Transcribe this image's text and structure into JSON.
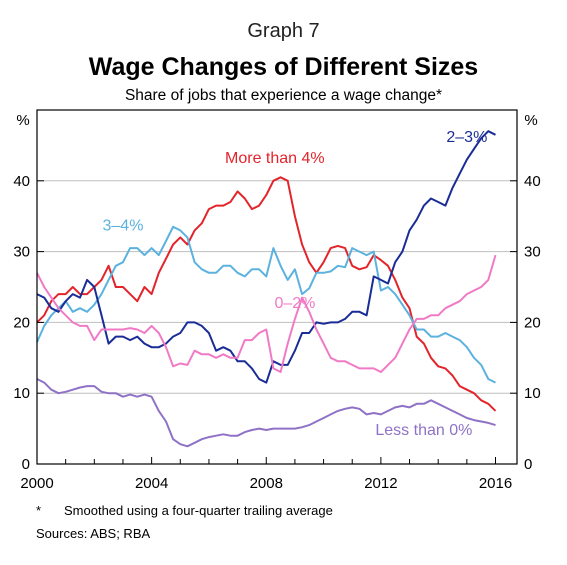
{
  "header": {
    "graph_label": "Graph 7",
    "title": "Wage Changes of Different Sizes",
    "subtitle": "Share of jobs that experience a wage change*"
  },
  "footer": {
    "footnote_marker": "*",
    "footnote": "Smoothed using a four-quarter trailing average",
    "sources": "Sources:   ABS; RBA"
  },
  "chart_data": {
    "type": "line",
    "title": "Wage Changes of Different Sizes",
    "subtitle": "Share of jobs that experience a wage change*",
    "ylabel_left": "%",
    "ylabel_right": "%",
    "ylim": [
      0,
      50
    ],
    "xlim": [
      2000,
      2016.75
    ],
    "yticks": [
      0,
      10,
      20,
      30,
      40
    ],
    "xticks": [
      2000,
      2004,
      2008,
      2012,
      2016
    ],
    "xtick_labels": [
      "2000",
      "2004",
      "2008",
      "2012",
      "2016"
    ],
    "grid": true,
    "x": [
      2000.0,
      2000.25,
      2000.5,
      2000.75,
      2001.0,
      2001.25,
      2001.5,
      2001.75,
      2002.0,
      2002.25,
      2002.5,
      2002.75,
      2003.0,
      2003.25,
      2003.5,
      2003.75,
      2004.0,
      2004.25,
      2004.5,
      2004.75,
      2005.0,
      2005.25,
      2005.5,
      2005.75,
      2006.0,
      2006.25,
      2006.5,
      2006.75,
      2007.0,
      2007.25,
      2007.5,
      2007.75,
      2008.0,
      2008.25,
      2008.5,
      2008.75,
      2009.0,
      2009.25,
      2009.5,
      2009.75,
      2010.0,
      2010.25,
      2010.5,
      2010.75,
      2011.0,
      2011.25,
      2011.5,
      2011.75,
      2012.0,
      2012.25,
      2012.5,
      2012.75,
      2013.0,
      2013.25,
      2013.5,
      2013.75,
      2014.0,
      2014.25,
      2014.5,
      2014.75,
      2015.0,
      2015.25,
      2015.5,
      2015.75,
      2016.0
    ],
    "series": [
      {
        "name": "More than 4%",
        "color": "#e3242b",
        "label_x": 2008.3,
        "label_y": 42.5,
        "values": [
          20.0,
          21.0,
          23.0,
          24.0,
          24.0,
          25.0,
          24.0,
          24.0,
          25.0,
          26.0,
          28.0,
          25.0,
          25.0,
          24.0,
          23.0,
          25.0,
          24.0,
          27.0,
          29.0,
          31.0,
          32.0,
          31.0,
          33.0,
          34.0,
          36.0,
          36.5,
          36.5,
          37.0,
          38.5,
          37.5,
          36.0,
          36.5,
          38.0,
          40.0,
          40.5,
          40.0,
          35.0,
          31.0,
          28.5,
          27.0,
          28.5,
          30.5,
          30.8,
          30.5,
          28.0,
          27.5,
          27.8,
          29.5,
          28.8,
          28.0,
          26.0,
          23.5,
          22.0,
          18.0,
          17.0,
          15.0,
          13.8,
          13.5,
          12.5,
          11.0,
          10.5,
          10.0,
          9.0,
          8.5,
          7.5
        ]
      },
      {
        "name": "3–4%",
        "color": "#5bb2de",
        "label_x": 2003.0,
        "label_y": 33.0,
        "values": [
          17.2,
          19.5,
          21.0,
          22.0,
          23.0,
          21.5,
          22.0,
          21.5,
          22.5,
          24.0,
          26.0,
          28.0,
          28.5,
          30.5,
          30.5,
          29.5,
          30.5,
          29.5,
          31.5,
          33.5,
          33.0,
          32.0,
          28.5,
          27.5,
          27.0,
          27.0,
          28.0,
          28.0,
          27.0,
          26.5,
          27.5,
          27.5,
          26.5,
          30.5,
          28.0,
          26.0,
          27.5,
          24.0,
          24.8,
          27.0,
          27.0,
          27.2,
          28.0,
          27.8,
          30.5,
          30.0,
          29.5,
          30.0,
          24.5,
          25.0,
          24.0,
          22.5,
          21.0,
          19.0,
          19.0,
          18.0,
          18.0,
          18.5,
          18.0,
          17.5,
          16.5,
          15.0,
          14.0,
          12.0,
          11.5
        ]
      },
      {
        "name": "2–3%",
        "color": "#1a2d96",
        "label_x": 2015.0,
        "label_y": 45.5,
        "values": [
          24.0,
          23.5,
          22.0,
          21.5,
          23.0,
          24.0,
          23.5,
          26.0,
          25.0,
          21.0,
          17.0,
          18.0,
          18.0,
          17.5,
          18.0,
          17.0,
          16.5,
          16.5,
          17.0,
          18.0,
          18.5,
          20.0,
          20.0,
          19.5,
          18.5,
          16.0,
          16.5,
          16.0,
          14.5,
          14.5,
          13.5,
          12.0,
          11.5,
          14.5,
          14.0,
          14.0,
          16.0,
          18.5,
          18.5,
          20.0,
          19.8,
          20.0,
          20.0,
          20.5,
          21.5,
          21.5,
          21.0,
          26.5,
          26.0,
          25.5,
          28.5,
          30.0,
          33.0,
          34.5,
          36.5,
          37.5,
          37.0,
          36.5,
          39.0,
          41.0,
          43.0,
          44.5,
          46.0,
          47.0,
          46.5
        ]
      },
      {
        "name": "0–2%",
        "color": "#f07ac6",
        "label_x": 2009.0,
        "label_y": 22.0,
        "values": [
          27.0,
          25.0,
          23.5,
          22.0,
          21.0,
          20.0,
          19.5,
          19.5,
          17.5,
          19.0,
          19.0,
          19.0,
          19.0,
          19.2,
          19.0,
          18.5,
          19.5,
          18.5,
          16.5,
          13.8,
          14.2,
          14.0,
          16.0,
          15.5,
          15.5,
          15.0,
          15.5,
          15.0,
          15.0,
          17.5,
          17.5,
          18.5,
          19.0,
          13.5,
          13.0,
          17.0,
          20.5,
          23.5,
          21.5,
          19.0,
          17.0,
          15.0,
          14.5,
          14.5,
          14.0,
          13.5,
          13.5,
          13.5,
          13.0,
          14.0,
          15.0,
          17.0,
          19.0,
          20.5,
          20.5,
          21.0,
          21.0,
          22.0,
          22.5,
          23.0,
          24.0,
          24.5,
          25.0,
          26.0,
          29.5
        ]
      },
      {
        "name": "Less than 0%",
        "color": "#8f72c6",
        "label_x": 2013.5,
        "label_y": 4.1,
        "values": [
          12.0,
          11.5,
          10.5,
          10.0,
          10.2,
          10.5,
          10.8,
          11.0,
          11.0,
          10.2,
          10.0,
          10.0,
          9.5,
          9.8,
          9.5,
          9.8,
          9.5,
          7.5,
          6.0,
          3.5,
          2.8,
          2.5,
          3.0,
          3.5,
          3.8,
          4.0,
          4.2,
          4.0,
          4.0,
          4.5,
          4.8,
          5.0,
          4.8,
          5.0,
          5.0,
          5.0,
          5.0,
          5.2,
          5.5,
          6.0,
          6.5,
          7.0,
          7.5,
          7.8,
          8.0,
          7.8,
          7.0,
          7.2,
          7.0,
          7.5,
          8.0,
          8.2,
          8.0,
          8.5,
          8.5,
          9.0,
          8.5,
          8.0,
          7.5,
          7.0,
          6.5,
          6.2,
          6.0,
          5.8,
          5.5
        ]
      }
    ]
  }
}
